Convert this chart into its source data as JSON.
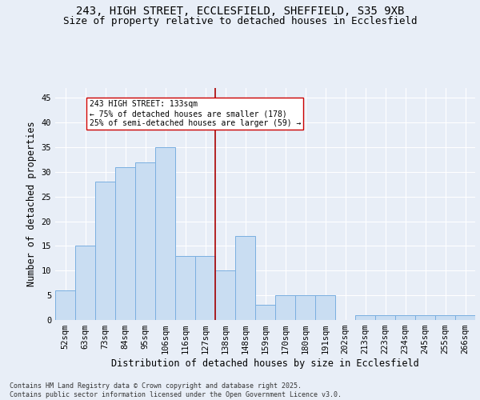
{
  "title_line1": "243, HIGH STREET, ECCLESFIELD, SHEFFIELD, S35 9XB",
  "title_line2": "Size of property relative to detached houses in Ecclesfield",
  "xlabel": "Distribution of detached houses by size in Ecclesfield",
  "ylabel": "Number of detached properties",
  "footer": "Contains HM Land Registry data © Crown copyright and database right 2025.\nContains public sector information licensed under the Open Government Licence v3.0.",
  "categories": [
    "52sqm",
    "63sqm",
    "73sqm",
    "84sqm",
    "95sqm",
    "106sqm",
    "116sqm",
    "127sqm",
    "138sqm",
    "148sqm",
    "159sqm",
    "170sqm",
    "180sqm",
    "191sqm",
    "202sqm",
    "213sqm",
    "223sqm",
    "234sqm",
    "245sqm",
    "255sqm",
    "266sqm"
  ],
  "values": [
    6,
    15,
    28,
    31,
    32,
    35,
    13,
    13,
    10,
    17,
    3,
    5,
    5,
    5,
    0,
    1,
    1,
    1,
    1,
    1,
    1
  ],
  "bar_color": "#c9ddf2",
  "bar_edge_color": "#7aafe0",
  "vline_x_idx": 7.5,
  "vline_color": "#aa0000",
  "annotation_text": "243 HIGH STREET: 133sqm\n← 75% of detached houses are smaller (178)\n25% of semi-detached houses are larger (59) →",
  "annotation_box_color": "#ffffff",
  "annotation_box_edge": "#cc0000",
  "ylim": [
    0,
    47
  ],
  "yticks": [
    0,
    5,
    10,
    15,
    20,
    25,
    30,
    35,
    40,
    45
  ],
  "bg_color": "#e8eef7",
  "plot_bg_color": "#e8eef7",
  "title_fontsize": 10,
  "subtitle_fontsize": 9,
  "tick_fontsize": 7.5,
  "label_fontsize": 8.5,
  "footer_fontsize": 6
}
